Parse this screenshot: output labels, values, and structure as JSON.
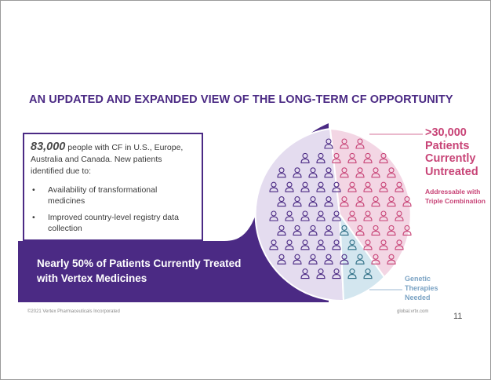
{
  "slide": {
    "title": "AN UPDATED AND EXPANDED VIEW OF THE LONG-TERM CF OPPORTUNITY",
    "intro_number": "83,000",
    "intro_text": " people with CF in U.S., Europe, Australia and Canada. New patients identified due to:",
    "bullets": [
      "Availability of transformational medicines",
      "Improved country-level registry data collection"
    ],
    "banner_line1": "Nearly 50% of Patients Currently Treated",
    "banner_line2": "with Vertex Medicines",
    "stat_lines": [
      ">30,000",
      "Patients",
      "Currently",
      "Untreated"
    ],
    "stat_sub_lines": [
      "Addressable with",
      "Triple Combination"
    ],
    "genetic_lines": [
      "Genetic",
      "Therapies",
      "Needed"
    ],
    "footer_left": "©2021 Vertex Pharmaceuticals Incorporated",
    "footer_right": "global.vrtx.com",
    "page_number": "11"
  },
  "colors": {
    "purple": "#4b2a84",
    "treated_fill": "#e4dcef",
    "untreated_fill": "#f3d6e4",
    "genetic_fill": "#d3e6ef",
    "pink_text": "#c84477",
    "blue_text": "#7ba3c4"
  },
  "chart_data": {
    "type": "pie",
    "segments": [
      {
        "label": "Currently Treated with Vertex Medicines",
        "share": 0.5,
        "icon": "person-icon-purple"
      },
      {
        "label": ">30,000 Patients Currently Untreated",
        "share": 0.4,
        "icon": "person-icon-pink"
      },
      {
        "label": "Genetic Therapies Needed",
        "share": 0.1,
        "icon": "person-icon-teal"
      }
    ]
  }
}
